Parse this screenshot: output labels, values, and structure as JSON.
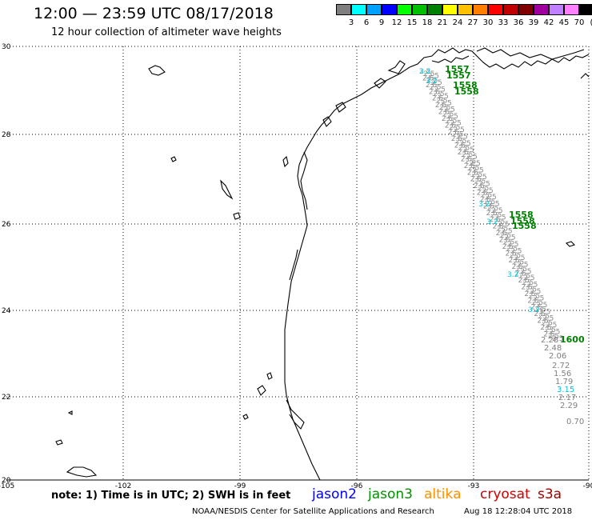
{
  "header": {
    "title": "12:00 — 23:59 UTC 08/17/2018",
    "subtitle": "12 hour collection of altimeter wave heights"
  },
  "scale": {
    "unit": "(ft)",
    "labels": [
      "3",
      "6",
      "9",
      "12",
      "15",
      "18",
      "21",
      "24",
      "27",
      "30",
      "33",
      "36",
      "39",
      "42",
      "45",
      "70"
    ],
    "colors": [
      "#7f7f7f",
      "#00ffff",
      "#00a0ff",
      "#0000ff",
      "#00ff00",
      "#00c000",
      "#008000",
      "#ffff00",
      "#ffc000",
      "#ff8000",
      "#ff0000",
      "#c00000",
      "#800000",
      "#a000a0",
      "#c080ff",
      "#ff80ff",
      "#000000"
    ]
  },
  "map": {
    "lat_ticks": [
      "30",
      "28",
      "26",
      "24",
      "22",
      "20"
    ],
    "lon_ticks": [
      "-105",
      "-102",
      "-99",
      "-96",
      "-93",
      "-90"
    ],
    "track_times": [
      {
        "label": "1557",
        "color": "#008000"
      },
      {
        "label": "1557",
        "color": "#008000"
      },
      {
        "label": "1558",
        "color": "#008000"
      },
      {
        "label": "1558",
        "color": "#008000"
      },
      {
        "label": "1558",
        "color": "#008000"
      },
      {
        "label": "1558",
        "color": "#008000"
      },
      {
        "label": "1558",
        "color": "#008000"
      },
      {
        "label": "1600",
        "color": "#008000"
      }
    ],
    "swh_labels": [
      {
        "label": "2.28",
        "color": "#808080"
      },
      {
        "label": "2.48",
        "color": "#808080"
      },
      {
        "label": "2.06",
        "color": "#808080"
      },
      {
        "label": "2.72",
        "color": "#808080"
      },
      {
        "label": "1.56",
        "color": "#808080"
      },
      {
        "label": "1.79",
        "color": "#808080"
      },
      {
        "label": "3.15",
        "color": "#00c0e0"
      },
      {
        "label": "2.17",
        "color": "#808080"
      },
      {
        "label": "2.29",
        "color": "#808080"
      },
      {
        "label": "0.70",
        "color": "#808080"
      }
    ]
  },
  "footer": {
    "note": "note:  1) Time is in UTC;  2) SWH is in feet",
    "legend": [
      {
        "label": "jason2",
        "color": "#0000ff"
      },
      {
        "label": "jason3",
        "color": "#009000"
      },
      {
        "label": "altika",
        "color": "#ff9000"
      },
      {
        "label": "cryosat",
        "color": "#d00000"
      },
      {
        "label": "s3a",
        "color": "#a00000"
      }
    ],
    "credit": "NOAA/NESDIS Center for Satellite Applications and Research",
    "generated": "Aug 18 12:28:04 UTC 2018"
  }
}
